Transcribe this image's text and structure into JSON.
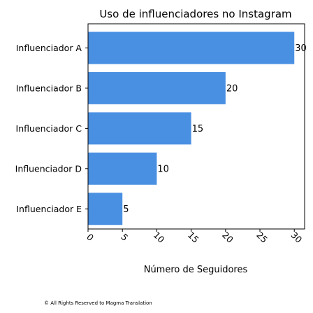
{
  "chart_data": {
    "type": "bar",
    "orientation": "horizontal",
    "title": "Uso de influenciadores no Instagram",
    "xlabel": "Número de Seguidores",
    "ylabel": "",
    "categories": [
      "Influenciador A",
      "Influenciador B",
      "Influenciador C",
      "Influenciador D",
      "Influenciador E"
    ],
    "values": [
      30,
      20,
      15,
      10,
      5
    ],
    "data_labels": [
      "30",
      "20",
      "15",
      "10",
      "5"
    ],
    "xlim": [
      0,
      31.5
    ],
    "xticks": [
      "0",
      "5",
      "10",
      "15",
      "20",
      "25",
      "30"
    ],
    "bar_color": "#4a90e2",
    "grid": false
  },
  "footer": "© All Rights Reserved to Magma Translation"
}
